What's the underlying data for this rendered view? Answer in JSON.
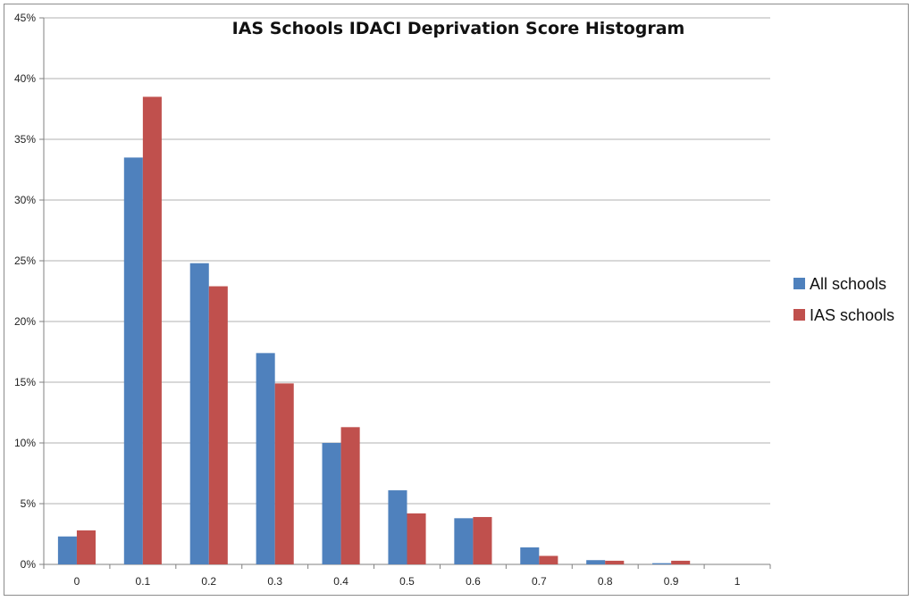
{
  "chart_data": {
    "type": "bar",
    "title": "IAS Schools IDACI Deprivation Score Histogram",
    "xlabel": "",
    "ylabel": "",
    "categories": [
      "0",
      "0.1",
      "0.2",
      "0.3",
      "0.4",
      "0.5",
      "0.6",
      "0.7",
      "0.8",
      "0.9",
      "1"
    ],
    "series": [
      {
        "name": "All schools",
        "color": "#4f81bd",
        "values": [
          2.3,
          33.5,
          24.8,
          17.4,
          10.0,
          6.1,
          3.8,
          1.4,
          0.35,
          0.1,
          0
        ]
      },
      {
        "name": "IAS schools",
        "color": "#c0504d",
        "values": [
          2.8,
          38.5,
          22.9,
          14.9,
          11.3,
          4.2,
          3.9,
          0.7,
          0.3,
          0.3,
          0
        ]
      }
    ],
    "ylim": [
      0,
      45
    ],
    "yticks": [
      0,
      5,
      10,
      15,
      20,
      25,
      30,
      35,
      40,
      45
    ],
    "ytick_labels": [
      "0%",
      "5%",
      "10%",
      "15%",
      "20%",
      "25%",
      "30%",
      "35%",
      "40%",
      "45%"
    ],
    "grid": true,
    "legend_position": "right"
  }
}
